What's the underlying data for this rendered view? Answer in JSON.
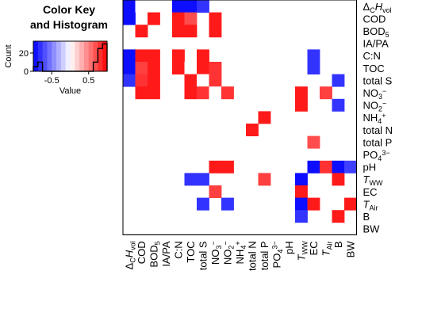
{
  "chart_data": [
    {
      "type": "heatmap",
      "title": "",
      "variables": [
        "ΔCHvol",
        "COD",
        "BOD5",
        "IA/PA",
        "C:N",
        "TOC",
        "total S",
        "NO3−",
        "NO2−",
        "NH4+",
        "total N",
        "total P",
        "PO43−",
        "pH",
        "TWW",
        "EC",
        "TAir",
        "B",
        "BW"
      ],
      "variable_labels": [
        {
          "main": "Δ",
          "sub": "C",
          "main2": "H",
          "sub2": "vol",
          "italic2": true
        },
        {
          "main": "COD"
        },
        {
          "main": "BOD",
          "sub": "5"
        },
        {
          "main": "IA/PA"
        },
        {
          "main": "C:N"
        },
        {
          "main": "TOC"
        },
        {
          "main": "total S"
        },
        {
          "main": "NO",
          "sub": "3",
          "sup": "−"
        },
        {
          "main": "NO",
          "sub": "2",
          "sup": "−"
        },
        {
          "main": "NH",
          "sub": "4",
          "sup": "+"
        },
        {
          "main": "total N"
        },
        {
          "main": "total P"
        },
        {
          "main": "PO",
          "sub": "4",
          "sup": "3−"
        },
        {
          "main": "pH"
        },
        {
          "main": "T",
          "sub": "WW",
          "italic": true
        },
        {
          "main": "EC"
        },
        {
          "main": "T",
          "sub": "Air",
          "italic": true
        },
        {
          "main": "B"
        },
        {
          "main": "BW"
        }
      ],
      "value_range": [
        -1,
        1
      ],
      "cells": [
        {
          "row": 0,
          "col": 0,
          "v": -0.95
        },
        {
          "row": 0,
          "col": 1,
          "v": 0.0
        },
        {
          "row": 0,
          "col": 4,
          "v": -0.95
        },
        {
          "row": 0,
          "col": 5,
          "v": -0.95
        },
        {
          "row": 0,
          "col": 6,
          "v": -0.8
        },
        {
          "row": 1,
          "col": 0,
          "v": -0.95
        },
        {
          "row": 1,
          "col": 2,
          "v": 0.9
        },
        {
          "row": 1,
          "col": 4,
          "v": 0.9
        },
        {
          "row": 1,
          "col": 5,
          "v": 0.7
        },
        {
          "row": 1,
          "col": 7,
          "v": 0.9
        },
        {
          "row": 2,
          "col": 1,
          "v": 0.9
        },
        {
          "row": 2,
          "col": 4,
          "v": 0.9
        },
        {
          "row": 2,
          "col": 5,
          "v": 0.9
        },
        {
          "row": 2,
          "col": 7,
          "v": 0.9
        },
        {
          "row": 4,
          "col": 0,
          "v": -0.95
        },
        {
          "row": 4,
          "col": 1,
          "v": 0.9
        },
        {
          "row": 4,
          "col": 2,
          "v": 0.9
        },
        {
          "row": 4,
          "col": 4,
          "v": 0.9
        },
        {
          "row": 4,
          "col": 6,
          "v": 0.9
        },
        {
          "row": 4,
          "col": 15,
          "v": -0.8
        },
        {
          "row": 5,
          "col": 0,
          "v": -0.95
        },
        {
          "row": 5,
          "col": 1,
          "v": 0.75
        },
        {
          "row": 5,
          "col": 2,
          "v": 0.9
        },
        {
          "row": 5,
          "col": 4,
          "v": 0.9
        },
        {
          "row": 5,
          "col": 5,
          "v": 0.0
        },
        {
          "row": 5,
          "col": 6,
          "v": 0.9
        },
        {
          "row": 5,
          "col": 7,
          "v": 0.8
        },
        {
          "row": 5,
          "col": 15,
          "v": -0.8
        },
        {
          "row": 6,
          "col": 0,
          "v": -0.8
        },
        {
          "row": 6,
          "col": 1,
          "v": 0.8
        },
        {
          "row": 6,
          "col": 2,
          "v": 0.9
        },
        {
          "row": 6,
          "col": 5,
          "v": 0.9
        },
        {
          "row": 6,
          "col": 6,
          "v": 0.0
        },
        {
          "row": 6,
          "col": 7,
          "v": 0.8
        },
        {
          "row": 6,
          "col": 17,
          "v": -0.8
        },
        {
          "row": 7,
          "col": 1,
          "v": 0.9
        },
        {
          "row": 7,
          "col": 2,
          "v": 0.9
        },
        {
          "row": 7,
          "col": 5,
          "v": 0.9
        },
        {
          "row": 7,
          "col": 6,
          "v": 0.8
        },
        {
          "row": 7,
          "col": 7,
          "v": 0.0
        },
        {
          "row": 7,
          "col": 8,
          "v": 0.8
        },
        {
          "row": 7,
          "col": 14,
          "v": 0.9
        },
        {
          "row": 7,
          "col": 16,
          "v": 0.75
        },
        {
          "row": 8,
          "col": 14,
          "v": 0.9
        },
        {
          "row": 8,
          "col": 17,
          "v": -0.8
        },
        {
          "row": 9,
          "col": 11,
          "v": 0.9
        },
        {
          "row": 10,
          "col": 10,
          "v": 0.9
        },
        {
          "row": 11,
          "col": 15,
          "v": 0.7
        },
        {
          "row": 13,
          "col": 7,
          "v": 0.9
        },
        {
          "row": 13,
          "col": 8,
          "v": 0.9
        },
        {
          "row": 13,
          "col": 15,
          "v": -0.95
        },
        {
          "row": 13,
          "col": 16,
          "v": 0.8
        },
        {
          "row": 13,
          "col": 17,
          "v": -0.95
        },
        {
          "row": 13,
          "col": 18,
          "v": -0.75
        },
        {
          "row": 14,
          "col": 5,
          "v": -0.8
        },
        {
          "row": 14,
          "col": 6,
          "v": -0.8
        },
        {
          "row": 14,
          "col": 11,
          "v": 0.75
        },
        {
          "row": 14,
          "col": 14,
          "v": -0.95
        },
        {
          "row": 14,
          "col": 17,
          "v": 0.9
        },
        {
          "row": 15,
          "col": 7,
          "v": 0.75
        },
        {
          "row": 15,
          "col": 14,
          "v": 0.9
        },
        {
          "row": 16,
          "col": 6,
          "v": -0.8
        },
        {
          "row": 16,
          "col": 8,
          "v": -0.8
        },
        {
          "row": 16,
          "col": 14,
          "v": -0.95
        },
        {
          "row": 16,
          "col": 15,
          "v": 0.9
        },
        {
          "row": 16,
          "col": 18,
          "v": 0.9
        },
        {
          "row": 17,
          "col": 14,
          "v": -0.8
        },
        {
          "row": 17,
          "col": 17,
          "v": 0.9
        }
      ]
    },
    {
      "type": "histogram",
      "title": "Color Key and Histogram",
      "title_lines": [
        "Color Key",
        "and Histogram"
      ],
      "xlabel": "Value",
      "ylabel": "Count",
      "x_ticks": [
        "-0.5",
        "0.5"
      ],
      "x_tick_values": [
        -0.5,
        0.5
      ],
      "y_ticks": [
        "0",
        "20"
      ],
      "y_tick_values": [
        0,
        20
      ],
      "xlim": [
        -1,
        1
      ],
      "ylim": [
        0,
        33
      ],
      "bin_edges": [
        -1.0,
        -0.875,
        -0.75,
        -0.625,
        -0.5,
        -0.375,
        -0.25,
        -0.125,
        0.0,
        0.125,
        0.25,
        0.375,
        0.5,
        0.625,
        0.75,
        0.875,
        1.0
      ],
      "counts": [
        5,
        10,
        0,
        0,
        0,
        0,
        0,
        0,
        0,
        0,
        0,
        0,
        0,
        10,
        25,
        30
      ]
    }
  ],
  "colors": {
    "negative": "#0000ff",
    "neutral": "#ffffff",
    "positive": "#ff0000"
  }
}
